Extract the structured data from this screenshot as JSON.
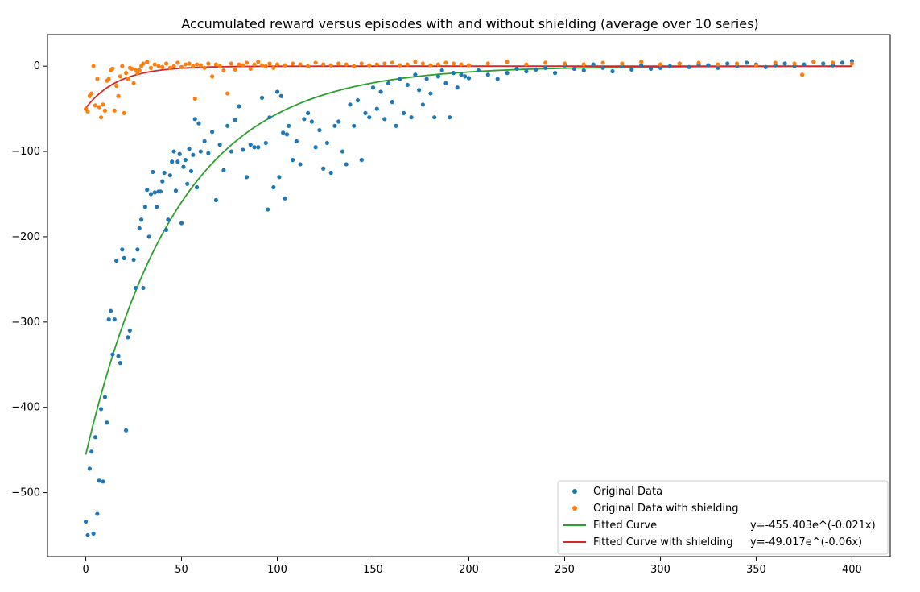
{
  "chart_data": {
    "type": "scatter",
    "title": "Accumulated reward versus episodes with and without shielding (average over 10 series)",
    "xlabel": "",
    "ylabel": "",
    "xlim": [
      -20,
      420
    ],
    "ylim": [
      -575,
      37
    ],
    "xticks": [
      0,
      50,
      100,
      150,
      200,
      250,
      300,
      350,
      400
    ],
    "yticks": [
      0,
      -100,
      -200,
      -300,
      -400,
      -500
    ],
    "ytick_labels": [
      "0",
      "−100",
      "−200",
      "−300",
      "−400",
      "−500"
    ],
    "grid": false,
    "legend_position": "lower-right",
    "colors": {
      "original": "#1f77b4",
      "shielded": "#ff7f0e",
      "fit": "#2ca02c",
      "fit_shielded": "#d62728"
    },
    "series": [
      {
        "name": "Original Data",
        "kind": "scatter",
        "color": "#1f77b4",
        "x": [
          0,
          1,
          2,
          3,
          4,
          5,
          6,
          7,
          8,
          9,
          10,
          11,
          12,
          13,
          14,
          15,
          16,
          17,
          18,
          19,
          20,
          21,
          22,
          23,
          25,
          26,
          27,
          28,
          29,
          30,
          31,
          32,
          33,
          34,
          35,
          36,
          37,
          38,
          39,
          40,
          41,
          42,
          43,
          44,
          45,
          46,
          47,
          48,
          49,
          50,
          51,
          52,
          53,
          54,
          55,
          56,
          57,
          58,
          59,
          60,
          62,
          64,
          66,
          68,
          70,
          72,
          74,
          76,
          78,
          80,
          82,
          84,
          86,
          88,
          90,
          92,
          94,
          95,
          96,
          98,
          100,
          101,
          102,
          103,
          104,
          105,
          106,
          108,
          110,
          112,
          114,
          116,
          118,
          120,
          122,
          124,
          126,
          128,
          130,
          132,
          134,
          136,
          138,
          140,
          142,
          144,
          146,
          148,
          150,
          152,
          154,
          156,
          158,
          160,
          162,
          164,
          166,
          168,
          170,
          172,
          174,
          176,
          178,
          180,
          182,
          184,
          186,
          188,
          190,
          192,
          194,
          196,
          198,
          200,
          205,
          210,
          215,
          220,
          225,
          230,
          235,
          240,
          245,
          250,
          255,
          260,
          265,
          270,
          275,
          280,
          285,
          290,
          295,
          300,
          305,
          310,
          315,
          320,
          325,
          330,
          335,
          340,
          345,
          350,
          355,
          360,
          365,
          370,
          375,
          380,
          385,
          390,
          395,
          400
        ],
        "y": [
          -534,
          -550,
          -472,
          -452,
          -548,
          -435,
          -525,
          -486,
          -402,
          -487,
          -388,
          -418,
          -297,
          -287,
          -338,
          -297,
          -228,
          -340,
          -348,
          -215,
          -225,
          -427,
          -318,
          -310,
          -227,
          -260,
          -215,
          -190,
          -180,
          -260,
          -165,
          -145,
          -200,
          -150,
          -124,
          -148,
          -165,
          -147,
          -147,
          -135,
          -125,
          -192,
          -180,
          -128,
          -112,
          -100,
          -146,
          -112,
          -103,
          -184,
          -118,
          -110,
          -138,
          -97,
          -123,
          -104,
          -62,
          -142,
          -67,
          -100,
          -88,
          -102,
          -77,
          -157,
          -92,
          -122,
          -70,
          -100,
          -63,
          -47,
          -98,
          -130,
          -92,
          -95,
          -95,
          -37,
          -90,
          -168,
          -60,
          -142,
          -30,
          -130,
          -35,
          -78,
          -155,
          -80,
          -70,
          -110,
          -88,
          -115,
          -62,
          -55,
          -65,
          -95,
          -75,
          -120,
          -90,
          -125,
          -70,
          -65,
          -100,
          -115,
          -45,
          -70,
          -40,
          -110,
          -55,
          -60,
          -25,
          -50,
          -30,
          -62,
          -20,
          -42,
          -70,
          -15,
          -55,
          -22,
          -60,
          -10,
          -28,
          -45,
          -15,
          -32,
          -60,
          -12,
          -5,
          -20,
          -60,
          -8,
          -25,
          -10,
          -12,
          -14,
          -5,
          -10,
          -15,
          -8,
          -3,
          -6,
          -4,
          -2,
          -8,
          1,
          -3,
          -5,
          2,
          -2,
          -6,
          0,
          -4,
          1,
          -3,
          -2,
          0,
          3,
          -1,
          2,
          1,
          -2,
          3,
          0,
          4,
          2,
          -1,
          1,
          3,
          0,
          2,
          5,
          3,
          1,
          4,
          6
        ]
      },
      {
        "name": "Original Data with shielding",
        "kind": "scatter",
        "color": "#ff7f0e",
        "x": [
          0,
          1,
          2,
          3,
          4,
          5,
          6,
          7,
          8,
          9,
          10,
          11,
          12,
          13,
          14,
          15,
          16,
          17,
          18,
          19,
          20,
          21,
          22,
          23,
          24,
          25,
          26,
          27,
          28,
          29,
          30,
          32,
          34,
          36,
          38,
          40,
          42,
          44,
          46,
          48,
          50,
          52,
          54,
          56,
          57,
          58,
          60,
          62,
          64,
          66,
          68,
          70,
          72,
          74,
          76,
          78,
          80,
          82,
          84,
          86,
          88,
          90,
          92,
          94,
          96,
          98,
          100,
          104,
          108,
          112,
          116,
          120,
          124,
          128,
          132,
          136,
          140,
          144,
          148,
          152,
          156,
          160,
          164,
          168,
          172,
          176,
          180,
          184,
          188,
          192,
          196,
          200,
          210,
          220,
          230,
          240,
          250,
          260,
          270,
          280,
          290,
          300,
          310,
          320,
          330,
          340,
          350,
          360,
          370,
          374,
          380,
          390,
          400
        ],
        "y": [
          -50,
          -53,
          -35,
          -32,
          0,
          -46,
          -15,
          -48,
          -60,
          -45,
          -52,
          -17,
          -15,
          -5,
          -3,
          -52,
          -23,
          -35,
          -12,
          0,
          -55,
          -8,
          -15,
          -2,
          -3,
          -20,
          -4,
          -8,
          -5,
          0,
          3,
          5,
          -2,
          2,
          0,
          -1,
          3,
          -2,
          0,
          4,
          -1,
          2,
          3,
          0,
          -38,
          2,
          1,
          -2,
          3,
          -12,
          2,
          0,
          -5,
          -32,
          3,
          -4,
          2,
          1,
          4,
          -3,
          2,
          5,
          1,
          0,
          3,
          -2,
          2,
          1,
          3,
          2,
          0,
          4,
          2,
          1,
          3,
          2,
          0,
          3,
          1,
          2,
          3,
          4,
          1,
          2,
          5,
          3,
          1,
          2,
          4,
          3,
          2,
          1,
          3,
          5,
          2,
          4,
          3,
          2,
          4,
          3,
          5,
          2,
          3,
          4,
          2,
          3,
          1,
          4,
          3,
          -10,
          5,
          4,
          3
        ]
      },
      {
        "name": "Fitted Curve",
        "kind": "curve",
        "color": "#2ca02c",
        "equation": "y=-455.403e^(-0.021x)",
        "a": -455.403,
        "b": -0.021,
        "x_range": [
          0,
          400
        ]
      },
      {
        "name": "Fitted Curve with shielding",
        "kind": "curve",
        "color": "#d62728",
        "equation": "y=-49.017e^(-0.06x)",
        "a": -49.017,
        "b": -0.06,
        "x_range": [
          0,
          400
        ]
      }
    ],
    "legend": [
      {
        "label": "Original Data",
        "equation": ""
      },
      {
        "label": "Original Data with shielding",
        "equation": ""
      },
      {
        "label": "Fitted Curve",
        "equation": "y=-455.403e^(-0.021x)"
      },
      {
        "label": "Fitted Curve with shielding",
        "equation": "y=-49.017e^(-0.06x)"
      }
    ]
  }
}
